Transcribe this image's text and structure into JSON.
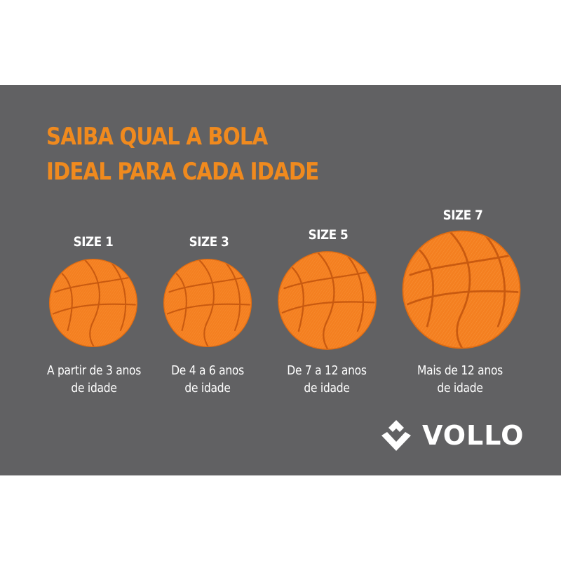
{
  "title": {
    "line1": "SAIBA QUAL A BOLA",
    "line2": "IDEAL PARA CADA IDADE"
  },
  "balls": [
    {
      "size_label": "SIZE 1",
      "age_line1": "A partir de 3 anos",
      "age_line2": "de idade"
    },
    {
      "size_label": "SIZE 3",
      "age_line1": "De 4 a 6 anos",
      "age_line2": "de idade"
    },
    {
      "size_label": "SIZE 5",
      "age_line1": "De 7 a 12 anos",
      "age_line2": "de idade"
    },
    {
      "size_label": "SIZE 7",
      "age_line1": "Mais de 12 anos",
      "age_line2": "de idade"
    }
  ],
  "brand": {
    "name": "VOLLO"
  },
  "colors": {
    "background": "#616163",
    "accent": "#f08a1e",
    "ball": "#f47f20",
    "text": "#ffffff"
  }
}
